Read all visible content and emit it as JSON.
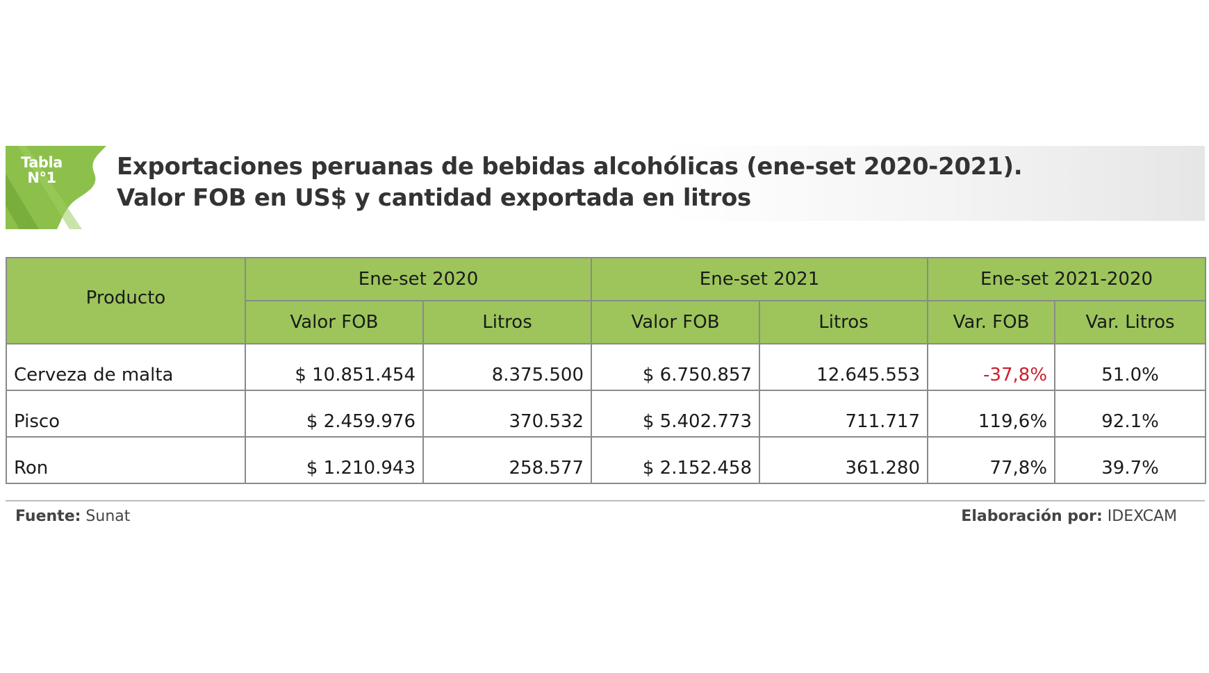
{
  "badge": {
    "line1": "Tabla",
    "line2": "N°1"
  },
  "title": {
    "line1": "Exportaciones peruanas de bebidas alcohólicas (ene-set 2020-2021).",
    "line2": "Valor FOB en US$ y cantidad exportada en litros"
  },
  "colors": {
    "header_green": "#9dc55b",
    "badge_green": "#8cc04b",
    "negative_red": "#c8202c"
  },
  "table": {
    "product_header": "Producto",
    "groups": [
      "Ene-set 2020",
      "Ene-set 2021",
      "Ene-set 2021-2020"
    ],
    "subheaders": [
      "Valor FOB",
      "Litros",
      "Valor FOB",
      "Litros",
      "Var. FOB",
      "Var. Litros"
    ],
    "rows": [
      {
        "product": "Cerveza de malta",
        "fob2020": "$ 10.851.454",
        "lit2020": "8.375.500",
        "fob2021": "$ 6.750.857",
        "lit2021": "12.645.553",
        "var_fob": "-37,8%",
        "var_lit": "51.0%"
      },
      {
        "product": "Pisco",
        "fob2020": "$ 2.459.976",
        "lit2020": "370.532",
        "fob2021": "$ 5.402.773",
        "lit2021": "711.717",
        "var_fob": "119,6%",
        "var_lit": "92.1%"
      },
      {
        "product": "Ron",
        "fob2020": "$ 1.210.943",
        "lit2020": "258.577",
        "fob2021": "$ 2.152.458",
        "lit2021": "361.280",
        "var_fob": "77,8%",
        "var_lit": "39.7%"
      }
    ]
  },
  "footer": {
    "source_label": "Fuente:",
    "source_value": "Sunat",
    "made_label": "Elaboración por:",
    "made_value": "IDEXCAM"
  }
}
